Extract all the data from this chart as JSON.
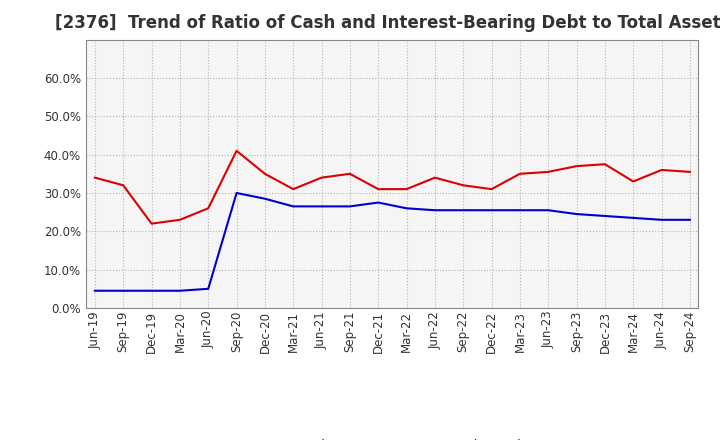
{
  "title": "[2376]  Trend of Ratio of Cash and Interest-Bearing Debt to Total Assets",
  "x_labels": [
    "Jun-19",
    "Sep-19",
    "Dec-19",
    "Mar-20",
    "Jun-20",
    "Sep-20",
    "Dec-20",
    "Mar-21",
    "Jun-21",
    "Sep-21",
    "Dec-21",
    "Mar-22",
    "Jun-22",
    "Sep-22",
    "Dec-22",
    "Mar-23",
    "Jun-23",
    "Sep-23",
    "Dec-23",
    "Mar-24",
    "Jun-24",
    "Sep-24"
  ],
  "cash": [
    0.34,
    0.32,
    0.22,
    0.23,
    0.26,
    0.41,
    0.35,
    0.31,
    0.34,
    0.35,
    0.31,
    0.31,
    0.34,
    0.32,
    0.31,
    0.35,
    0.355,
    0.37,
    0.375,
    0.33,
    0.36,
    0.355
  ],
  "ibd": [
    0.045,
    0.045,
    0.045,
    0.045,
    0.05,
    0.3,
    0.285,
    0.265,
    0.265,
    0.265,
    0.275,
    0.26,
    0.255,
    0.255,
    0.255,
    0.255,
    0.255,
    0.245,
    0.24,
    0.235,
    0.23,
    0.23
  ],
  "cash_color": "#dd0000",
  "ibd_color": "#0000cc",
  "ylim": [
    0.0,
    0.7
  ],
  "yticks": [
    0.0,
    0.1,
    0.2,
    0.3,
    0.4,
    0.5,
    0.6
  ],
  "plot_bg_color": "#f5f5f5",
  "fig_bg_color": "#ffffff",
  "grid_color": "#999999",
  "legend_cash": "Cash",
  "legend_ibd": "Interest-Bearing Debt",
  "title_fontsize": 12,
  "axis_fontsize": 8.5,
  "legend_fontsize": 9.5,
  "line_width": 1.5
}
